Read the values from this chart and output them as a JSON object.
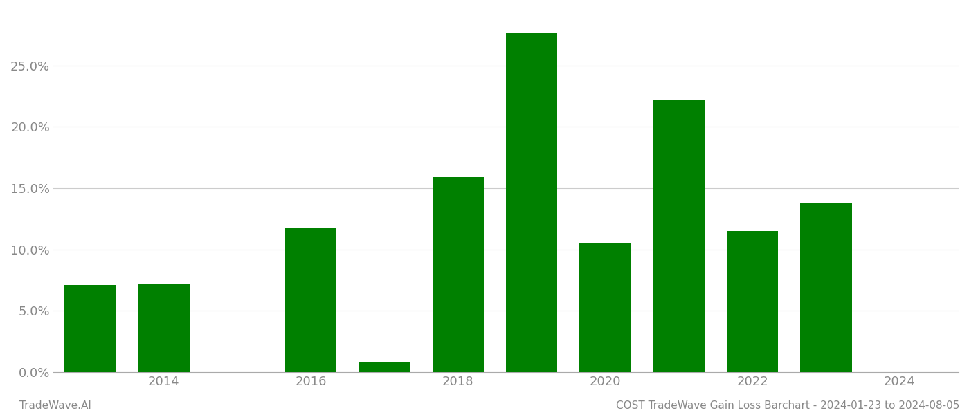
{
  "years": [
    2013,
    2014,
    2015,
    2016,
    2017,
    2018,
    2019,
    2020,
    2021,
    2022,
    2023,
    2024
  ],
  "values": [
    0.071,
    0.072,
    0,
    0.118,
    0.008,
    0.159,
    0.277,
    0.105,
    0.222,
    0.115,
    0.138,
    0
  ],
  "bar_color": "#008000",
  "ylim": [
    0,
    0.295
  ],
  "yticks": [
    0.0,
    0.05,
    0.1,
    0.15,
    0.2,
    0.25
  ],
  "background_color": "#ffffff",
  "grid_color": "#cccccc",
  "footer_left": "TradeWave.AI",
  "footer_right": "COST TradeWave Gain Loss Barchart - 2024-01-23 to 2024-08-05",
  "footer_color": "#888888",
  "footer_fontsize": 11,
  "axis_label_color": "#888888",
  "tick_fontsize": 13,
  "xtick_labels": [
    2014,
    2016,
    2018,
    2020,
    2022,
    2024
  ]
}
